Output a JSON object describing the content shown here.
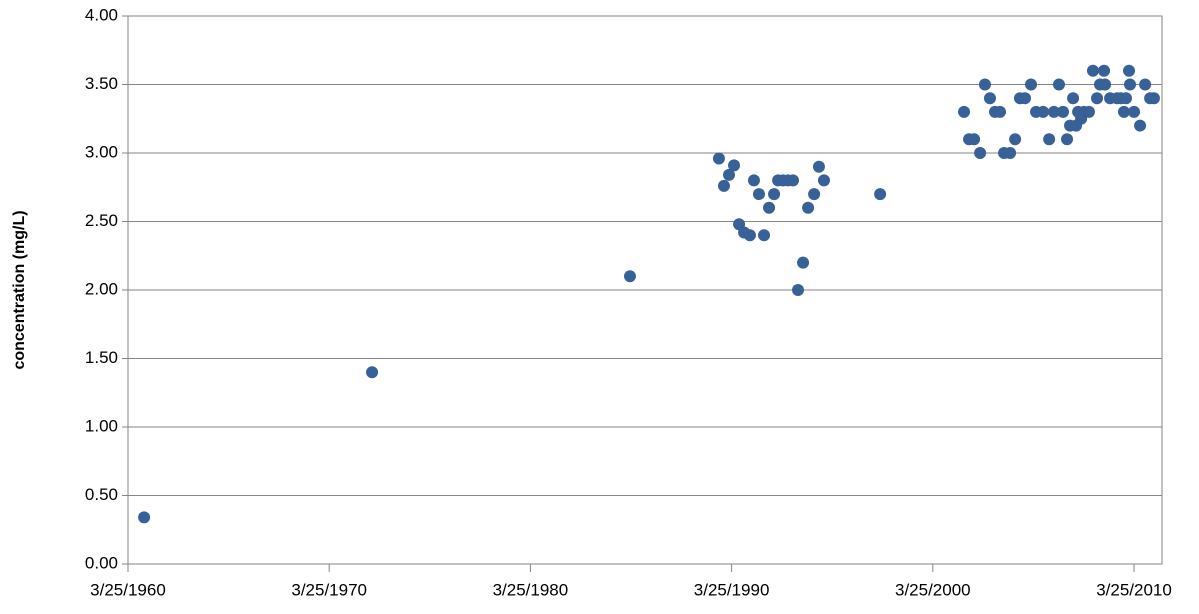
{
  "chart_data": {
    "type": "scatter",
    "y_label": "concentration (mg/L)",
    "color": "#386197",
    "grid": true,
    "x": [
      1961.03,
      1972.36,
      1985.18,
      1989.6,
      1989.85,
      1990.1,
      1990.35,
      1990.6,
      1990.85,
      1991.14,
      1991.34,
      1991.59,
      1991.84,
      1992.09,
      1992.34,
      1992.54,
      1992.78,
      1993.03,
      1993.28,
      1993.53,
      1993.78,
      1994.03,
      1994.33,
      1994.57,
      1994.82,
      1997.61,
      2001.78,
      2002.03,
      2002.28,
      2002.58,
      2002.82,
      2003.07,
      2003.32,
      2003.57,
      2003.77,
      2004.07,
      2004.32,
      2004.56,
      2004.81,
      2005.11,
      2005.36,
      2005.71,
      2006.01,
      2006.25,
      2006.5,
      2006.7,
      2006.9,
      2007.05,
      2007.2,
      2007.35,
      2007.45,
      2007.6,
      2007.74,
      2007.99,
      2008.19,
      2008.39,
      2008.54,
      2008.74,
      2008.79,
      2009.04,
      2009.39,
      2009.58,
      2009.73,
      2009.83,
      2009.98,
      2010.03,
      2010.23,
      2010.53,
      2010.78,
      2011.03,
      2011.22
    ],
    "values": [
      0.34,
      1.4,
      2.1,
      2.96,
      2.76,
      2.84,
      2.91,
      2.48,
      2.42,
      2.4,
      2.8,
      2.7,
      2.4,
      2.6,
      2.7,
      2.8,
      2.8,
      2.8,
      2.8,
      2.0,
      2.2,
      2.6,
      2.7,
      2.9,
      2.8,
      2.7,
      3.3,
      3.1,
      3.1,
      3.0,
      3.5,
      3.4,
      3.3,
      3.3,
      3.0,
      3.0,
      3.1,
      3.4,
      3.4,
      3.5,
      3.3,
      3.3,
      3.1,
      3.3,
      3.5,
      3.3,
      3.1,
      3.2,
      3.4,
      3.2,
      3.3,
      3.25,
      3.3,
      3.3,
      3.6,
      3.4,
      3.5,
      3.6,
      3.5,
      3.4,
      3.4,
      3.4,
      3.3,
      3.4,
      3.6,
      3.5,
      3.3,
      3.2,
      3.5,
      3.4,
      3.4
    ],
    "xlim": [
      1960.23,
      2011.62
    ],
    "xticks": [
      {
        "value": 1960.23,
        "label": "3/25/1960"
      },
      {
        "value": 1970.23,
        "label": "3/25/1970"
      },
      {
        "value": 1980.23,
        "label": "3/25/1980"
      },
      {
        "value": 1990.23,
        "label": "3/25/1990"
      },
      {
        "value": 2000.23,
        "label": "3/25/2000"
      },
      {
        "value": 2010.23,
        "label": "3/25/2010"
      }
    ],
    "ylim": [
      0,
      4
    ],
    "yticks": [
      {
        "value": 0,
        "label": "0.00"
      },
      {
        "value": 0.5,
        "label": "0.50"
      },
      {
        "value": 1,
        "label": "1.00"
      },
      {
        "value": 1.5,
        "label": "1.50"
      },
      {
        "value": 2,
        "label": "2.00"
      },
      {
        "value": 2.5,
        "label": "2.50"
      },
      {
        "value": 3,
        "label": "3.00"
      },
      {
        "value": 3.5,
        "label": "3.50"
      },
      {
        "value": 4,
        "label": "4.00"
      }
    ]
  }
}
